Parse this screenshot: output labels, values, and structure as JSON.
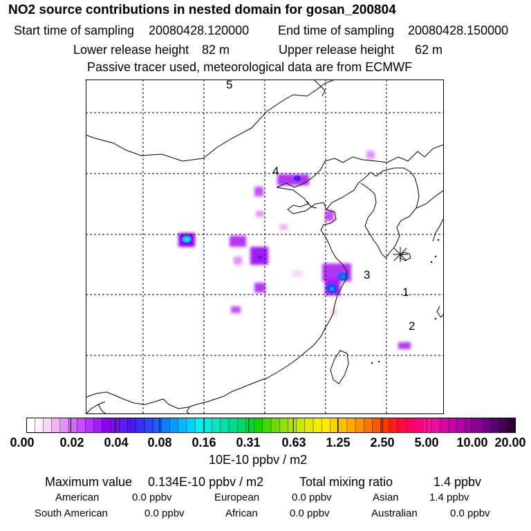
{
  "title": "NO2 source contributions in nested domain for gosan_200804",
  "sampling": {
    "start_label": "Start time of sampling",
    "start_value": "20080428.120000",
    "end_label": "End time of sampling",
    "end_value": "20080428.150000"
  },
  "release": {
    "lower_label": "Lower release height",
    "lower_value": "82 m",
    "upper_label": "Upper release height",
    "upper_value": "62 m"
  },
  "model_note": "Passive tracer used, meteorological data are from ECMWF",
  "map": {
    "station_labels": [
      "1",
      "2",
      "3",
      "4",
      "5"
    ],
    "receptor_icon": "asterisk-receptor-icon"
  },
  "colorbar": {
    "ticks": [
      "0.00",
      "0.02",
      "0.04",
      "0.08",
      "0.16",
      "0.31",
      "0.63",
      "1.25",
      "2.50",
      "5.00",
      "10.00",
      "20.00"
    ],
    "colors": [
      "#ffffff",
      "#fff0ff",
      "#fbd7fb",
      "#f2b4f6",
      "#e493f8",
      "#d46cf8",
      "#c44ef8",
      "#b236f6",
      "#a11ef4",
      "#8f00f2",
      "#7810f4",
      "#6018f6",
      "#4a18f8",
      "#3a2ef8",
      "#2c46f8",
      "#1c60f8",
      "#0c82f8",
      "#0a9cf8",
      "#08b8f8",
      "#06d0f8",
      "#00f2f2",
      "#00eee0",
      "#00e8c8",
      "#00e2aa",
      "#00dc8c",
      "#00d86a",
      "#00d448",
      "#18d200",
      "#46d800",
      "#6cdc00",
      "#90e000",
      "#aee400",
      "#c8e800",
      "#e2ec00",
      "#f6ee00",
      "#ffea00",
      "#ffd400",
      "#ffc000",
      "#ffa800",
      "#ff9000",
      "#ff7400",
      "#ff5600",
      "#ff3800",
      "#ff1a20",
      "#ff0a40",
      "#ff0060",
      "#ff0080",
      "#ff10a0",
      "#f00ca8",
      "#de00a8",
      "#cc00a8",
      "#b800a8",
      "#a200a0",
      "#8a0090",
      "#700080",
      "#5a006c",
      "#44004c",
      "#300038"
    ],
    "unit": "10E-10 ppbv / m2"
  },
  "summary": {
    "max_label": "Maximum value",
    "max_value": "0.134E-10 ppbv / m2",
    "total_label": "Total mixing ratio",
    "total_value": "1.4 ppbv",
    "regions": [
      {
        "name": "American",
        "value": "0.0 ppbv"
      },
      {
        "name": "European",
        "value": "0.0 ppbv"
      },
      {
        "name": "Asian",
        "value": "1.4 ppbv"
      },
      {
        "name": "South American",
        "value": "0.0 ppbv"
      },
      {
        "name": "African",
        "value": "0.0 ppbv"
      },
      {
        "name": "Australian",
        "value": "0.0 ppbv"
      }
    ]
  }
}
